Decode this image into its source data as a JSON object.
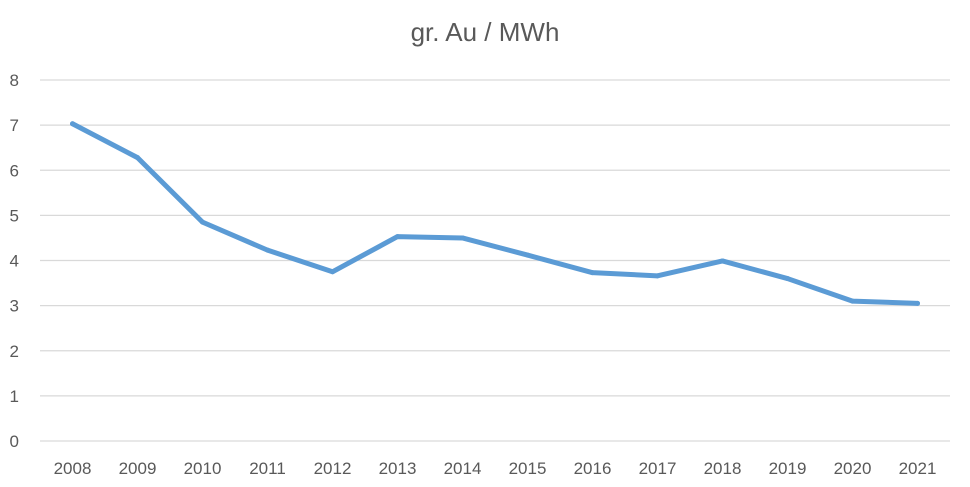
{
  "chart_data": {
    "type": "line",
    "title": "gr. Au / MWh",
    "xlabel": "",
    "ylabel": "",
    "categories": [
      "2008",
      "2009",
      "2010",
      "2011",
      "2012",
      "2013",
      "2014",
      "2015",
      "2016",
      "2017",
      "2018",
      "2019",
      "2020",
      "2021"
    ],
    "series": [
      {
        "values": [
          7.03,
          6.28,
          4.85,
          4.23,
          3.75,
          4.53,
          4.5,
          4.12,
          3.73,
          3.66,
          3.99,
          3.6,
          3.1,
          3.05
        ],
        "color": "#5b9bd5"
      }
    ],
    "ylim": [
      0,
      8
    ],
    "yticks": [
      "0",
      "1",
      "2",
      "3",
      "4",
      "5",
      "6",
      "7",
      "8"
    ],
    "grid": true,
    "legend": "none"
  }
}
